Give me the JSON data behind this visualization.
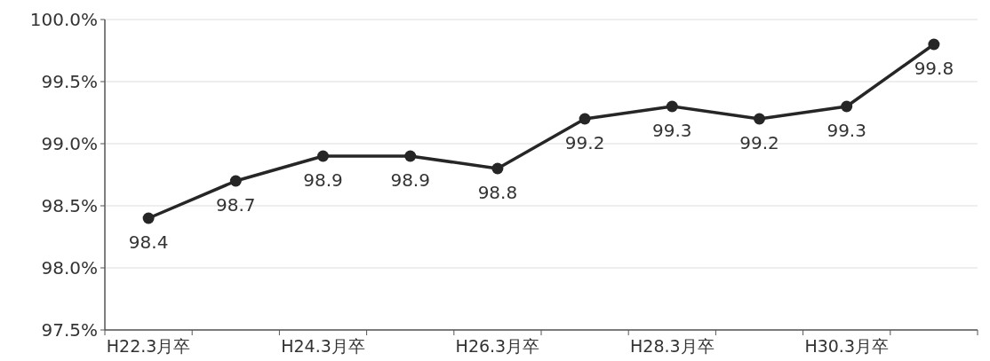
{
  "chart_data": {
    "type": "line",
    "categories": [
      "H22.3月卒",
      null,
      "H24.3月卒",
      null,
      "H26.3月卒",
      null,
      "H28.3月卒",
      null,
      "H30.3月卒",
      null
    ],
    "series": [
      {
        "color": "#262626",
        "values": [
          98.4,
          98.7,
          98.9,
          98.9,
          98.8,
          99.2,
          99.3,
          99.2,
          99.3,
          99.8
        ]
      }
    ],
    "ylim": [
      97.5,
      100.0
    ],
    "yticks": [
      {
        "value": 97.5,
        "label": "97.5%"
      },
      {
        "value": 98.0,
        "label": "98.0%"
      },
      {
        "value": 98.5,
        "label": "98.5%"
      },
      {
        "value": 99.0,
        "label": "99.0%"
      },
      {
        "value": 99.5,
        "label": "99.5%"
      },
      {
        "value": 100.0,
        "label": "100.0%"
      }
    ],
    "grid": "y",
    "marker": "circle",
    "data_labels": true
  }
}
